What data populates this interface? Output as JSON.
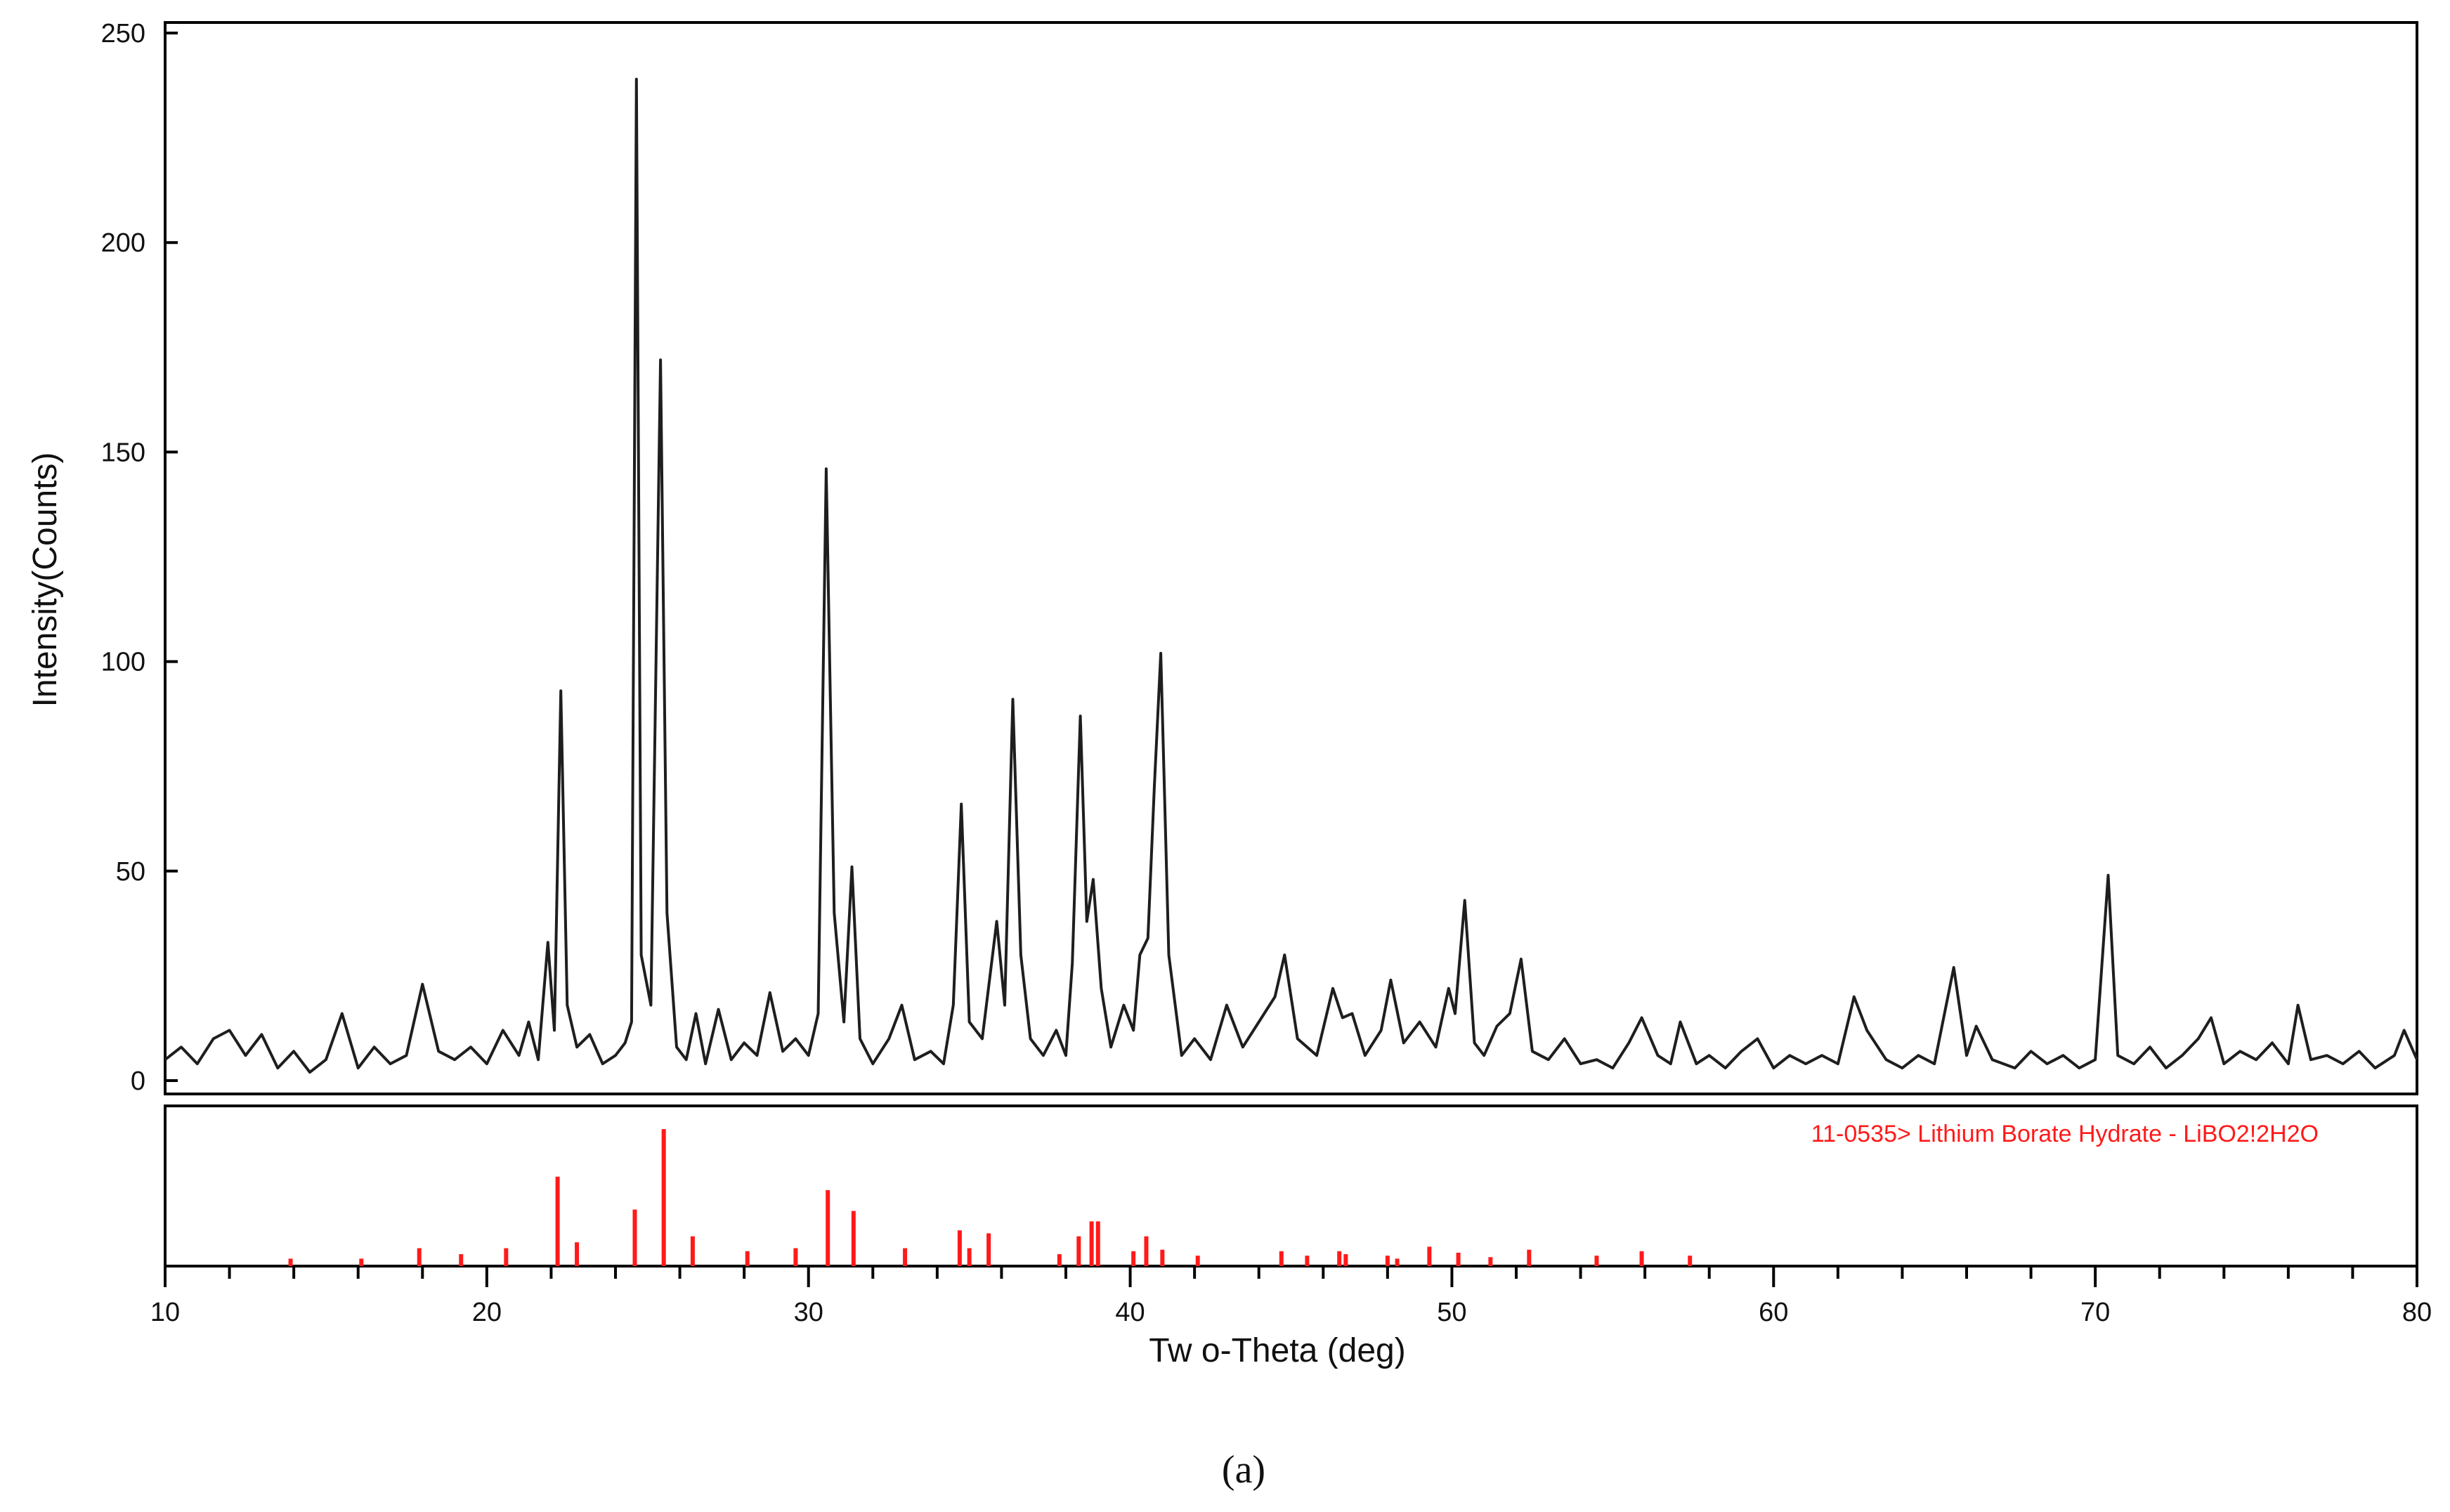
{
  "chart_data": {
    "type": "line",
    "xlabel": "Tw o-Theta (deg)",
    "ylabel": "Intensity(Counts)",
    "xlim": [
      10,
      80
    ],
    "ylim": [
      0,
      250
    ],
    "x_ticks": [
      10,
      20,
      30,
      40,
      50,
      60,
      70,
      80
    ],
    "y_ticks": [
      0,
      50,
      100,
      150,
      200,
      250
    ],
    "grid": false,
    "line_color": "#1e1e1e",
    "series": [
      {
        "values": [
          [
            10.0,
            5
          ],
          [
            10.5,
            8
          ],
          [
            11.0,
            4
          ],
          [
            11.5,
            10
          ],
          [
            12.0,
            12
          ],
          [
            12.5,
            6
          ],
          [
            13.0,
            11
          ],
          [
            13.5,
            3
          ],
          [
            14.0,
            7
          ],
          [
            14.5,
            2
          ],
          [
            15.0,
            5
          ],
          [
            15.5,
            16
          ],
          [
            16.0,
            3
          ],
          [
            16.5,
            8
          ],
          [
            17.0,
            4
          ],
          [
            17.5,
            6
          ],
          [
            18.0,
            23
          ],
          [
            18.5,
            7
          ],
          [
            19.0,
            5
          ],
          [
            19.5,
            8
          ],
          [
            20.0,
            4
          ],
          [
            20.5,
            12
          ],
          [
            21.0,
            6
          ],
          [
            21.3,
            14
          ],
          [
            21.6,
            5
          ],
          [
            21.9,
            33
          ],
          [
            22.1,
            12
          ],
          [
            22.3,
            93
          ],
          [
            22.5,
            18
          ],
          [
            22.8,
            8
          ],
          [
            23.2,
            11
          ],
          [
            23.6,
            4
          ],
          [
            24.0,
            6
          ],
          [
            24.3,
            9
          ],
          [
            24.5,
            14
          ],
          [
            24.65,
            239
          ],
          [
            24.8,
            30
          ],
          [
            25.1,
            18
          ],
          [
            25.4,
            172
          ],
          [
            25.6,
            40
          ],
          [
            25.9,
            8
          ],
          [
            26.2,
            5
          ],
          [
            26.5,
            16
          ],
          [
            26.8,
            4
          ],
          [
            27.2,
            17
          ],
          [
            27.6,
            5
          ],
          [
            28.0,
            9
          ],
          [
            28.4,
            6
          ],
          [
            28.8,
            21
          ],
          [
            29.2,
            7
          ],
          [
            29.6,
            10
          ],
          [
            30.0,
            6
          ],
          [
            30.3,
            16
          ],
          [
            30.55,
            146
          ],
          [
            30.8,
            40
          ],
          [
            31.1,
            14
          ],
          [
            31.35,
            51
          ],
          [
            31.6,
            10
          ],
          [
            32.0,
            4
          ],
          [
            32.5,
            10
          ],
          [
            32.9,
            18
          ],
          [
            33.3,
            5
          ],
          [
            33.8,
            7
          ],
          [
            34.2,
            4
          ],
          [
            34.5,
            18
          ],
          [
            34.75,
            66
          ],
          [
            35.0,
            14
          ],
          [
            35.4,
            10
          ],
          [
            35.85,
            38
          ],
          [
            36.1,
            18
          ],
          [
            36.35,
            91
          ],
          [
            36.6,
            30
          ],
          [
            36.9,
            10
          ],
          [
            37.3,
            6
          ],
          [
            37.7,
            12
          ],
          [
            38.0,
            6
          ],
          [
            38.2,
            28
          ],
          [
            38.45,
            87
          ],
          [
            38.65,
            38
          ],
          [
            38.85,
            48
          ],
          [
            39.1,
            22
          ],
          [
            39.4,
            8
          ],
          [
            39.8,
            18
          ],
          [
            40.1,
            12
          ],
          [
            40.3,
            30
          ],
          [
            40.55,
            34
          ],
          [
            40.75,
            70
          ],
          [
            40.95,
            102
          ],
          [
            41.2,
            30
          ],
          [
            41.6,
            6
          ],
          [
            42.0,
            10
          ],
          [
            42.5,
            5
          ],
          [
            43.0,
            18
          ],
          [
            43.5,
            8
          ],
          [
            44.0,
            14
          ],
          [
            44.5,
            20
          ],
          [
            44.8,
            30
          ],
          [
            45.2,
            10
          ],
          [
            45.8,
            6
          ],
          [
            46.3,
            22
          ],
          [
            46.6,
            15
          ],
          [
            46.9,
            16
          ],
          [
            47.3,
            6
          ],
          [
            47.8,
            12
          ],
          [
            48.1,
            24
          ],
          [
            48.5,
            9
          ],
          [
            49.0,
            14
          ],
          [
            49.5,
            8
          ],
          [
            49.9,
            22
          ],
          [
            50.1,
            16
          ],
          [
            50.4,
            43
          ],
          [
            50.7,
            9
          ],
          [
            51.0,
            6
          ],
          [
            51.4,
            13
          ],
          [
            51.8,
            16
          ],
          [
            52.15,
            29
          ],
          [
            52.5,
            7
          ],
          [
            53.0,
            5
          ],
          [
            53.5,
            10
          ],
          [
            54.0,
            4
          ],
          [
            54.5,
            5
          ],
          [
            55.0,
            3
          ],
          [
            55.5,
            9
          ],
          [
            55.9,
            15
          ],
          [
            56.4,
            6
          ],
          [
            56.8,
            4
          ],
          [
            57.1,
            14
          ],
          [
            57.6,
            4
          ],
          [
            58.0,
            6
          ],
          [
            58.5,
            3
          ],
          [
            59.0,
            7
          ],
          [
            59.5,
            10
          ],
          [
            60.0,
            3
          ],
          [
            60.5,
            6
          ],
          [
            61.0,
            4
          ],
          [
            61.5,
            6
          ],
          [
            62.0,
            4
          ],
          [
            62.5,
            20
          ],
          [
            62.9,
            12
          ],
          [
            63.5,
            5
          ],
          [
            64.0,
            3
          ],
          [
            64.5,
            6
          ],
          [
            65.0,
            4
          ],
          [
            65.6,
            27
          ],
          [
            66.0,
            6
          ],
          [
            66.3,
            13
          ],
          [
            66.8,
            5
          ],
          [
            67.5,
            3
          ],
          [
            68.0,
            7
          ],
          [
            68.5,
            4
          ],
          [
            69.0,
            6
          ],
          [
            69.5,
            3
          ],
          [
            70.0,
            5
          ],
          [
            70.4,
            49
          ],
          [
            70.7,
            6
          ],
          [
            71.2,
            4
          ],
          [
            71.7,
            8
          ],
          [
            72.2,
            3
          ],
          [
            72.7,
            6
          ],
          [
            73.2,
            10
          ],
          [
            73.6,
            15
          ],
          [
            74.0,
            4
          ],
          [
            74.5,
            7
          ],
          [
            75.0,
            5
          ],
          [
            75.5,
            9
          ],
          [
            76.0,
            4
          ],
          [
            76.3,
            18
          ],
          [
            76.7,
            5
          ],
          [
            77.2,
            6
          ],
          [
            77.7,
            4
          ],
          [
            78.2,
            7
          ],
          [
            78.7,
            3
          ],
          [
            79.3,
            6
          ],
          [
            79.6,
            12
          ],
          [
            80.0,
            5
          ]
        ]
      }
    ],
    "reference": {
      "label": "11-0535> Lithium Borate Hydrate - LiBO2!2H2O",
      "color": "#ff1a1a",
      "ylim": [
        0,
        100
      ],
      "sticks": [
        [
          13.9,
          5
        ],
        [
          16.1,
          5
        ],
        [
          17.9,
          12
        ],
        [
          19.2,
          8
        ],
        [
          20.6,
          12
        ],
        [
          22.2,
          60
        ],
        [
          22.8,
          16
        ],
        [
          24.6,
          38
        ],
        [
          25.5,
          92
        ],
        [
          26.4,
          20
        ],
        [
          28.1,
          10
        ],
        [
          29.6,
          12
        ],
        [
          30.6,
          51
        ],
        [
          31.4,
          37
        ],
        [
          33.0,
          12
        ],
        [
          34.7,
          24
        ],
        [
          35.0,
          12
        ],
        [
          35.6,
          22
        ],
        [
          37.8,
          8
        ],
        [
          38.4,
          20
        ],
        [
          38.8,
          30
        ],
        [
          39.0,
          30
        ],
        [
          40.1,
          10
        ],
        [
          40.5,
          20
        ],
        [
          41.0,
          11
        ],
        [
          42.1,
          7
        ],
        [
          44.7,
          10
        ],
        [
          45.5,
          7
        ],
        [
          46.5,
          10
        ],
        [
          46.7,
          8
        ],
        [
          48.0,
          7
        ],
        [
          48.3,
          5
        ],
        [
          49.3,
          13
        ],
        [
          50.2,
          9
        ],
        [
          51.2,
          6
        ],
        [
          52.4,
          11
        ],
        [
          54.5,
          7
        ],
        [
          55.9,
          10
        ],
        [
          57.4,
          7
        ]
      ]
    }
  },
  "caption": "(a)"
}
